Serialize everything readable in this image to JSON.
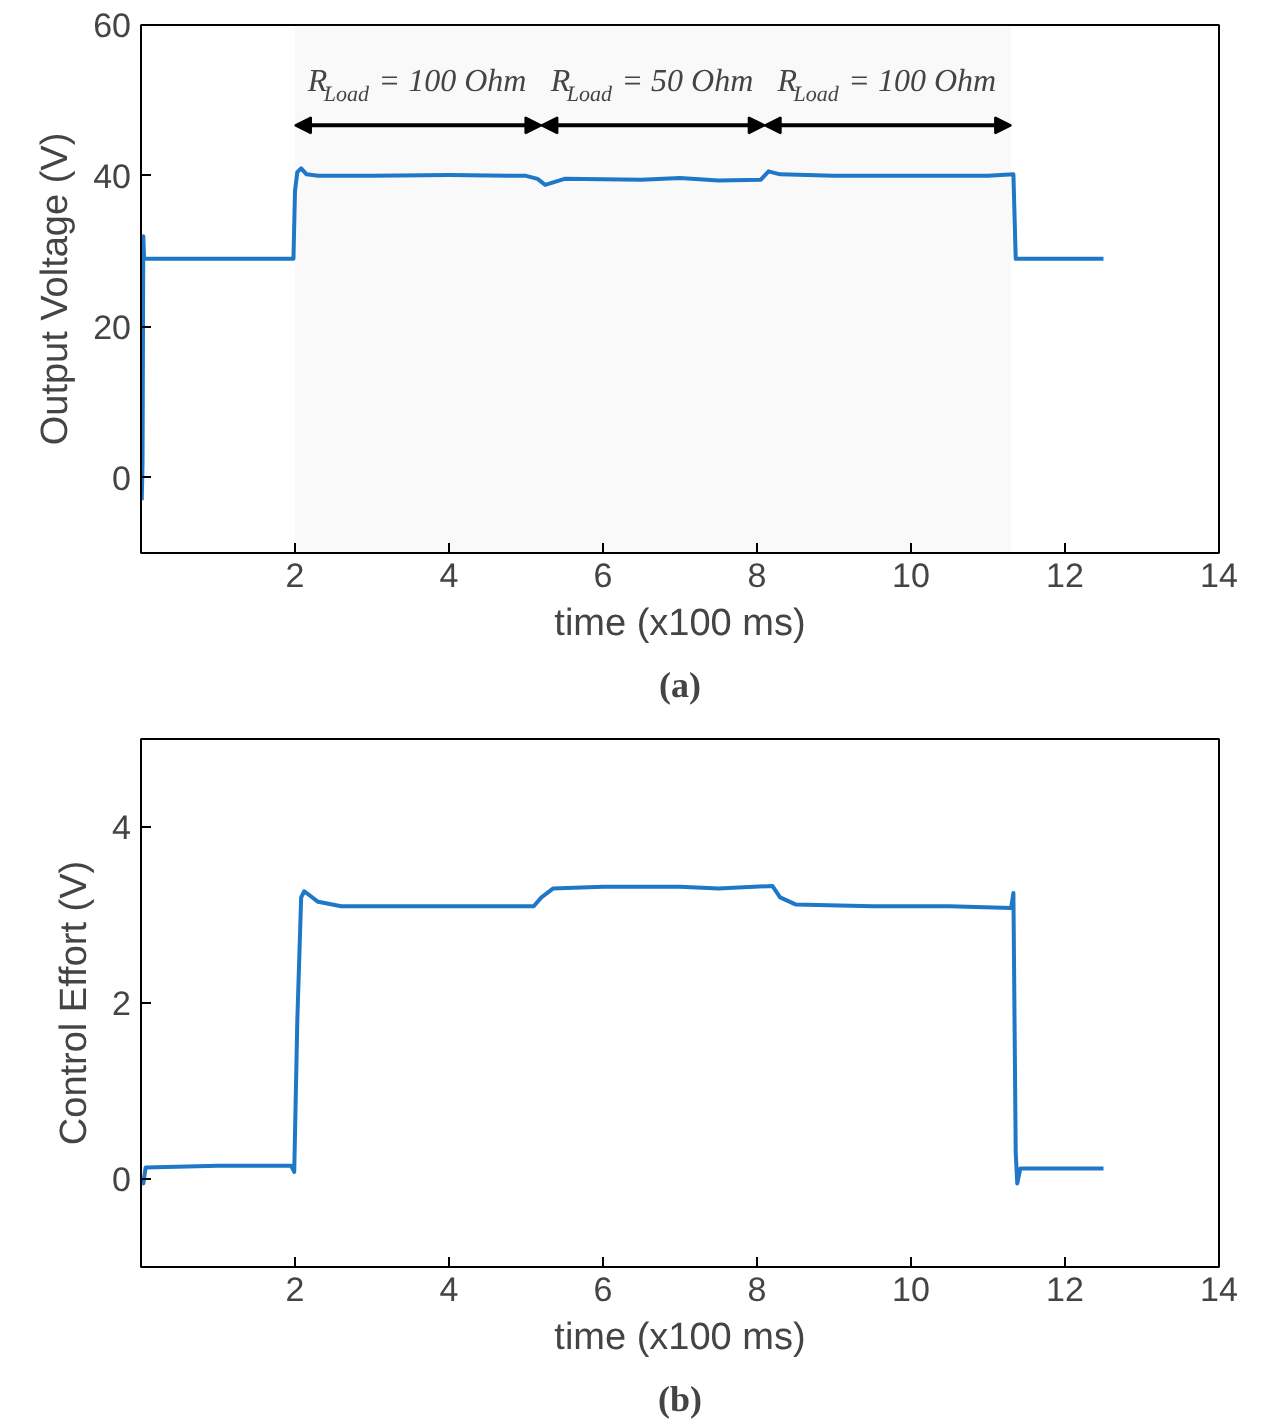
{
  "chart_data": [
    {
      "type": "line",
      "xlabel": "time (x100 ms)",
      "ylabel": "Output Voltage (V)",
      "x": [
        0.01,
        0.02,
        0.03,
        0.04,
        0.06,
        1.0,
        1.98,
        2.0,
        2.03,
        2.08,
        2.15,
        2.3,
        3.0,
        4.0,
        5.0,
        5.15,
        5.25,
        5.5,
        6.5,
        7.0,
        7.5,
        8.05,
        8.15,
        8.3,
        9.0,
        10.0,
        11.0,
        11.33,
        11.36,
        11.4,
        12.0,
        12.5
      ],
      "series": [
        {
          "color": "#1f77c8",
          "values": [
            -3,
            2,
            32,
            29,
            29,
            29,
            29,
            38,
            40.5,
            41,
            40.2,
            40,
            40,
            40.1,
            40,
            39.6,
            38.8,
            39.6,
            39.5,
            39.7,
            39.4,
            39.5,
            40.6,
            40.2,
            40,
            40,
            40,
            40.2,
            29,
            29,
            29,
            29
          ]
        }
      ],
      "xlim": [
        0,
        14
      ],
      "ylim": [
        -10,
        60
      ],
      "xticks": [
        2,
        4,
        6,
        8,
        10,
        12,
        14
      ],
      "yticks": [
        0,
        20,
        40,
        60
      ],
      "bands": [
        {
          "axis": "x",
          "from": 2,
          "to": 5.2,
          "label": "R$_{Load}$ = 100 Ohm"
        },
        {
          "axis": "x",
          "from": 5.2,
          "to": 8.1,
          "label": "R$_{Load}$ = 50 Ohm"
        },
        {
          "axis": "x",
          "from": 8.1,
          "to": 11.3,
          "label": "R$_{Load}$ = 100 Ohm"
        }
      ],
      "annotations": [
        "(a)"
      ],
      "grid": false
    },
    {
      "type": "line",
      "xlabel": "time (x100 ms)",
      "ylabel": "Control Effort (V)",
      "annotations": [
        "(b)"
      ],
      "x": [
        0.01,
        0.03,
        0.06,
        1.0,
        1.95,
        1.99,
        2.03,
        2.08,
        2.12,
        2.3,
        2.6,
        3.5,
        4.5,
        5.1,
        5.2,
        5.35,
        6.0,
        7.0,
        7.5,
        8.2,
        8.3,
        8.5,
        9.5,
        10.5,
        11.3,
        11.33,
        11.36,
        11.38,
        11.42,
        12.0,
        12.5
      ],
      "series": [
        {
          "color": "#1f77c8",
          "values": [
            0.0,
            -0.05,
            0.13,
            0.15,
            0.15,
            0.08,
            1.8,
            3.2,
            3.27,
            3.15,
            3.1,
            3.1,
            3.1,
            3.1,
            3.2,
            3.3,
            3.32,
            3.32,
            3.3,
            3.33,
            3.2,
            3.12,
            3.1,
            3.1,
            3.08,
            3.25,
            0.3,
            -0.05,
            0.12,
            0.12,
            0.12
          ]
        }
      ],
      "xlim": [
        0,
        14
      ],
      "ylim": [
        -1,
        5
      ],
      "xticks": [
        2,
        4,
        6,
        8,
        10,
        12,
        14
      ],
      "yticks": [
        0,
        2,
        4
      ],
      "grid": false
    }
  ]
}
